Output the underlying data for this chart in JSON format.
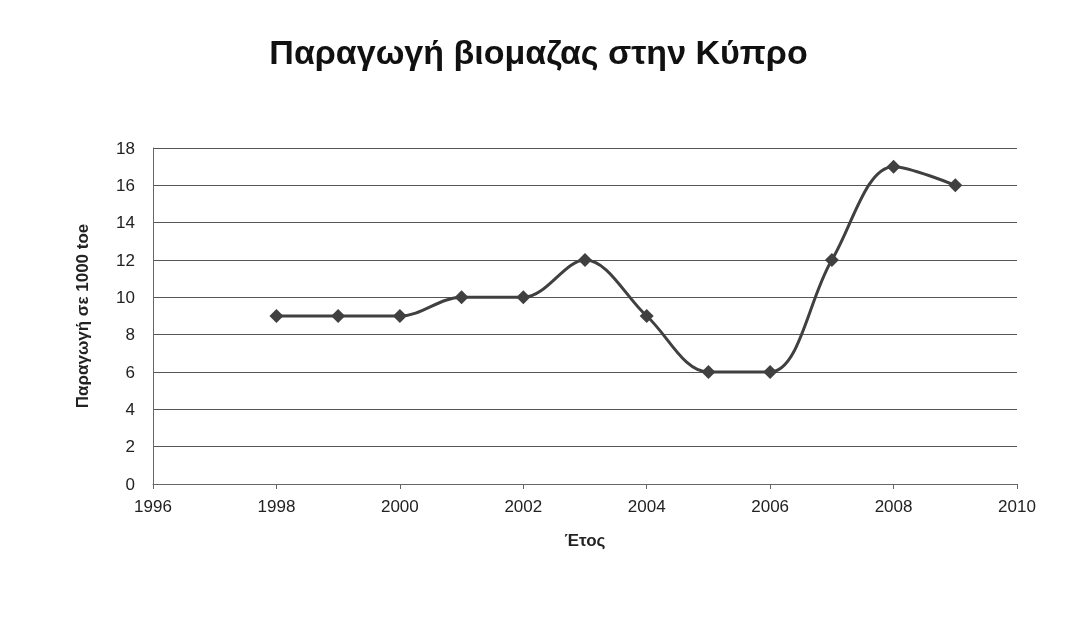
{
  "chart_data": {
    "type": "line",
    "title": "Παραγωγή βιομαζας στην Κύπρο",
    "xlabel": "Έτος",
    "ylabel": "Παραγωγή σε 1000 toe",
    "x": [
      1998,
      1999,
      2000,
      2001,
      2002,
      2003,
      2004,
      2005,
      2006,
      2007,
      2008,
      2009
    ],
    "series": [
      {
        "color": "#404040",
        "values": [
          9,
          9,
          9,
          10,
          10,
          12,
          9,
          6,
          6,
          12,
          17,
          16
        ]
      }
    ],
    "xlim": [
      1996,
      2010
    ],
    "xticks": [
      1996,
      1998,
      2000,
      2002,
      2004,
      2006,
      2008,
      2010
    ],
    "ylim": [
      0,
      18
    ],
    "yticks": [
      0,
      2,
      4,
      6,
      8,
      10,
      12,
      14,
      16,
      18
    ],
    "grid": "y",
    "marker": "diamond",
    "line_style": "solid"
  }
}
